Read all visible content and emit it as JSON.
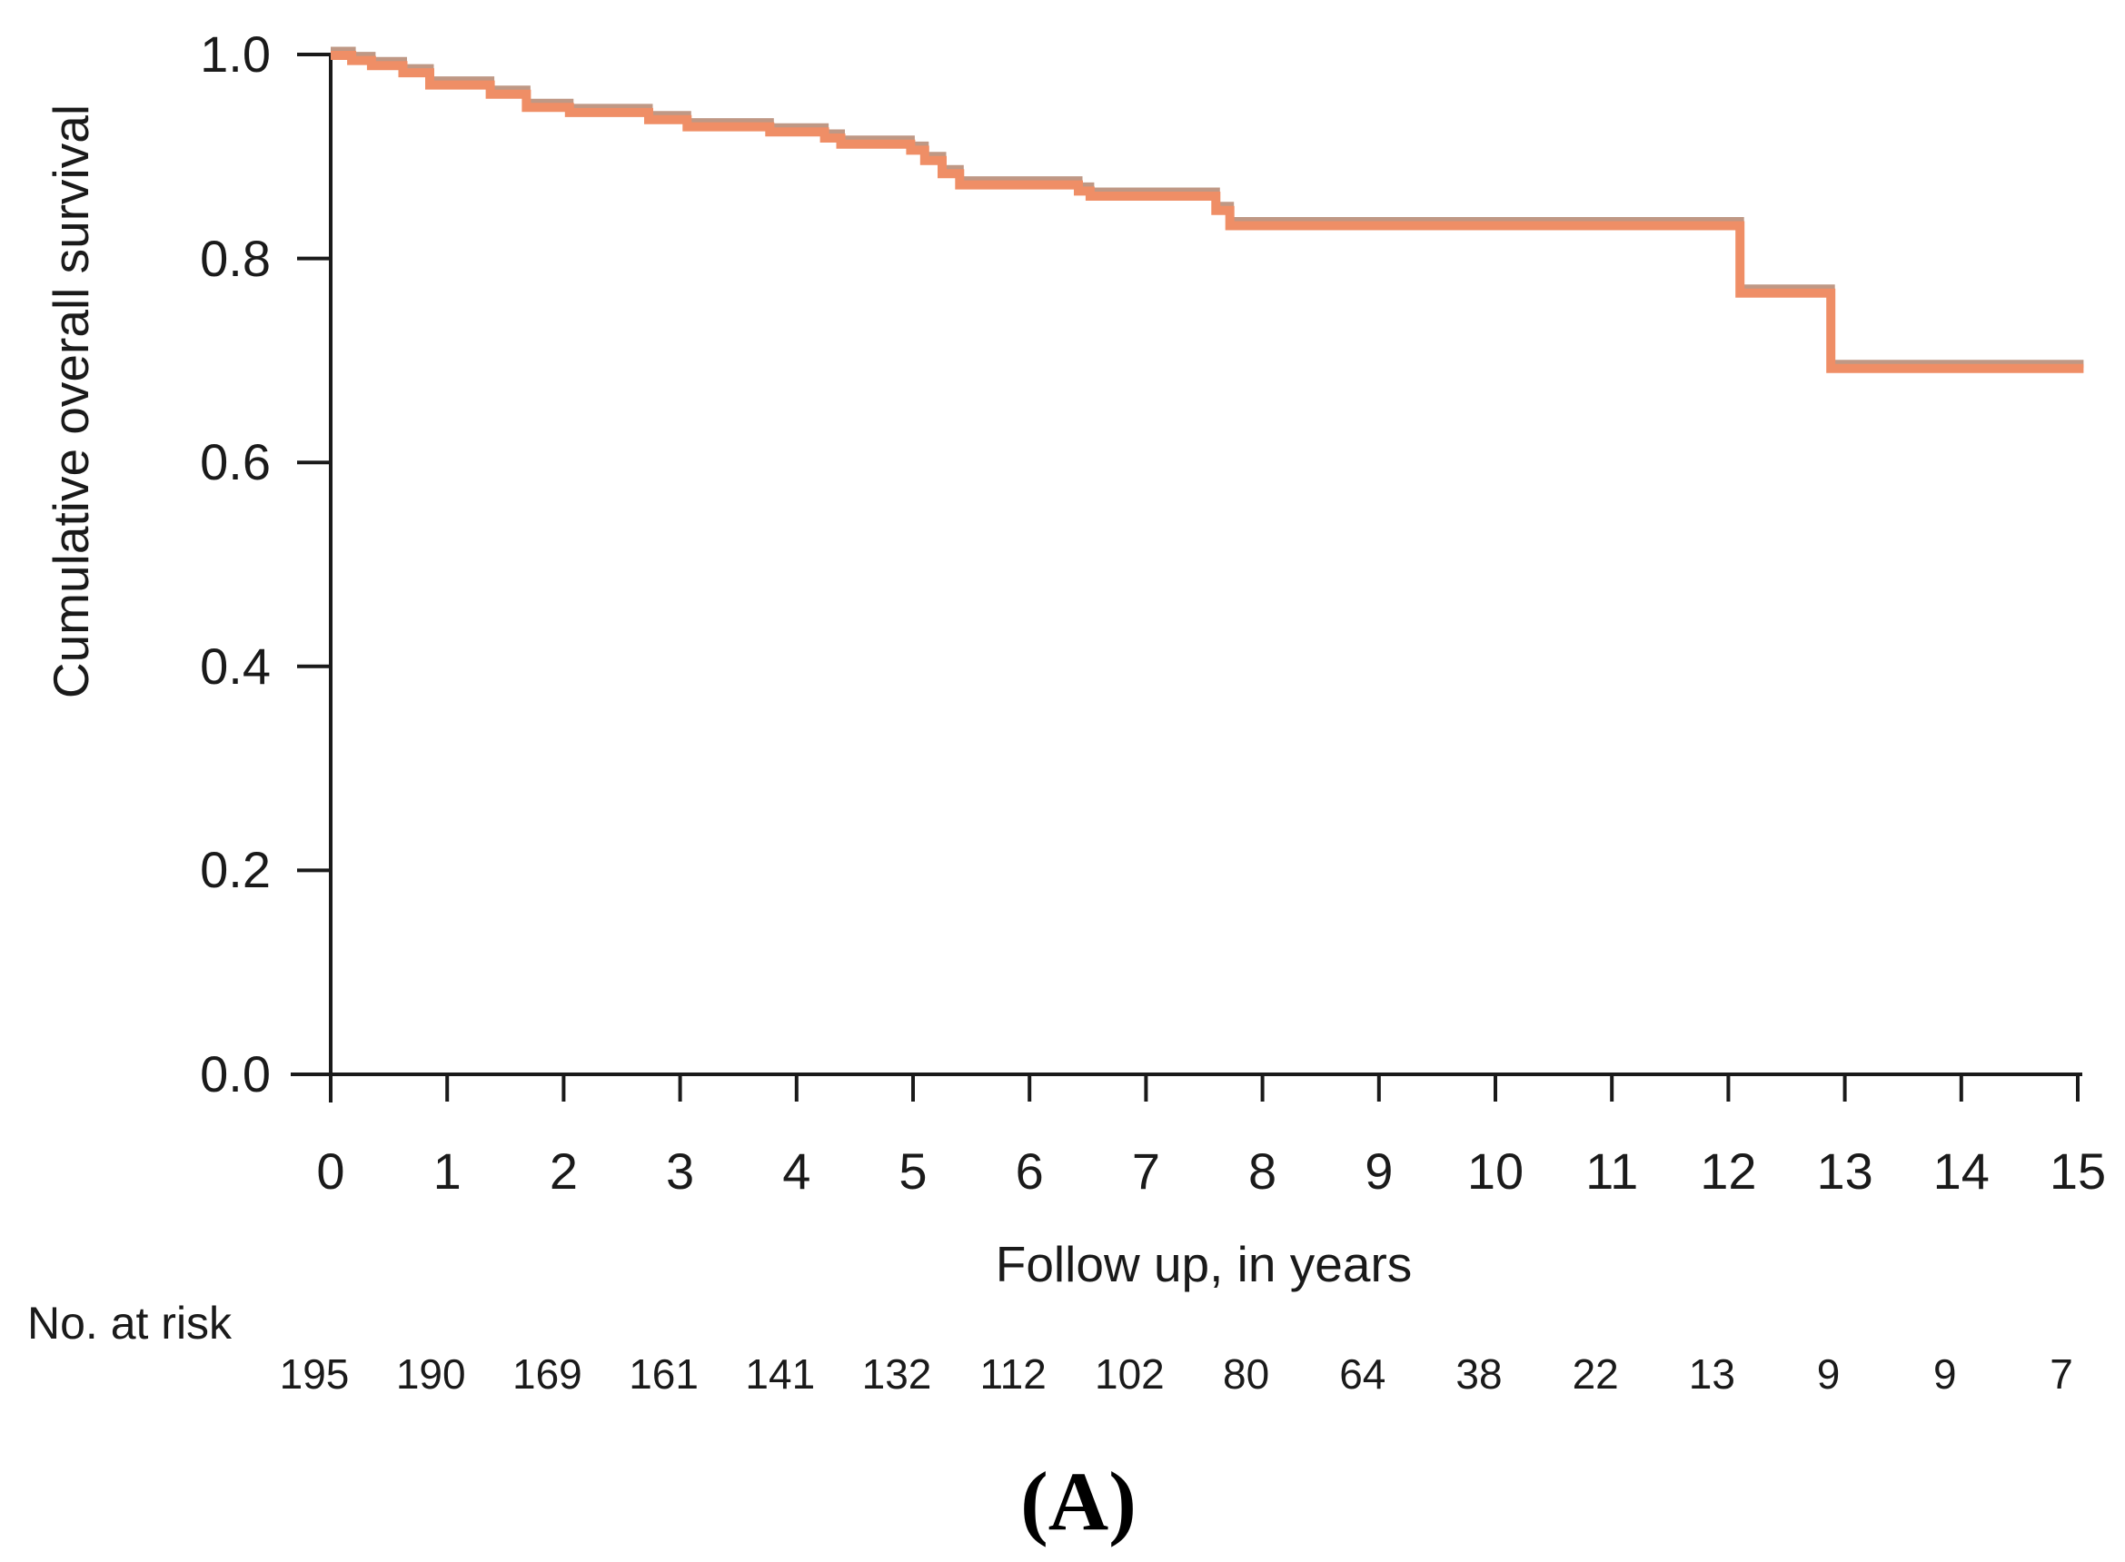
{
  "figure": {
    "caption": "(A)"
  },
  "chart_data": {
    "type": "line",
    "subtype": "kaplan-meier-step-curve",
    "title": "",
    "xlabel": "Follow up, in years",
    "ylabel": "Cumulative overall survival",
    "xlim": [
      0,
      15
    ],
    "ylim": [
      0.0,
      1.0
    ],
    "grid": false,
    "legend_position": "none",
    "axis_color": "#1a1a1a",
    "line_color": "#EF8E66",
    "line_shadow_color": "#BF9885",
    "xticks": [
      {
        "value": 0,
        "label": "0"
      },
      {
        "value": 1,
        "label": "1"
      },
      {
        "value": 2,
        "label": "2"
      },
      {
        "value": 3,
        "label": "3"
      },
      {
        "value": 4,
        "label": "4"
      },
      {
        "value": 5,
        "label": "5"
      },
      {
        "value": 6,
        "label": "6"
      },
      {
        "value": 7,
        "label": "7"
      },
      {
        "value": 8,
        "label": "8"
      },
      {
        "value": 9,
        "label": "9"
      },
      {
        "value": 10,
        "label": "10"
      },
      {
        "value": 11,
        "label": "11"
      },
      {
        "value": 12,
        "label": "12"
      },
      {
        "value": 13,
        "label": "13"
      },
      {
        "value": 14,
        "label": "14"
      },
      {
        "value": 15,
        "label": "15"
      }
    ],
    "yticks": [
      {
        "value": 0.0,
        "label": "0.0"
      },
      {
        "value": 0.2,
        "label": "0.2"
      },
      {
        "value": 0.4,
        "label": "0.4"
      },
      {
        "value": 0.6,
        "label": "0.6"
      },
      {
        "value": 0.8,
        "label": "0.8"
      },
      {
        "value": 1.0,
        "label": "1.0"
      }
    ],
    "series": [
      {
        "name": "Cumulative overall survival",
        "step_points": [
          [
            0.0,
            1.0
          ],
          [
            0.18,
            0.995
          ],
          [
            0.35,
            0.99
          ],
          [
            0.62,
            0.983
          ],
          [
            0.85,
            0.971
          ],
          [
            1.37,
            0.962
          ],
          [
            1.68,
            0.949
          ],
          [
            2.05,
            0.944
          ],
          [
            2.73,
            0.937
          ],
          [
            3.06,
            0.93
          ],
          [
            3.77,
            0.925
          ],
          [
            4.24,
            0.919
          ],
          [
            4.38,
            0.913
          ],
          [
            4.98,
            0.907
          ],
          [
            5.1,
            0.897
          ],
          [
            5.25,
            0.884
          ],
          [
            5.4,
            0.873
          ],
          [
            6.42,
            0.867
          ],
          [
            6.52,
            0.862
          ],
          [
            7.6,
            0.848
          ],
          [
            7.72,
            0.833
          ],
          [
            12.1,
            0.767
          ],
          [
            12.88,
            0.693
          ]
        ],
        "end_x": 15.05
      }
    ],
    "risk_table": {
      "label": "No. at risk",
      "times": [
        0,
        1,
        2,
        3,
        4,
        5,
        6,
        7,
        8,
        9,
        10,
        11,
        12,
        13,
        14,
        15
      ],
      "counts": [
        195,
        190,
        169,
        161,
        141,
        132,
        112,
        102,
        80,
        64,
        38,
        22,
        13,
        9,
        9,
        7
      ]
    }
  }
}
